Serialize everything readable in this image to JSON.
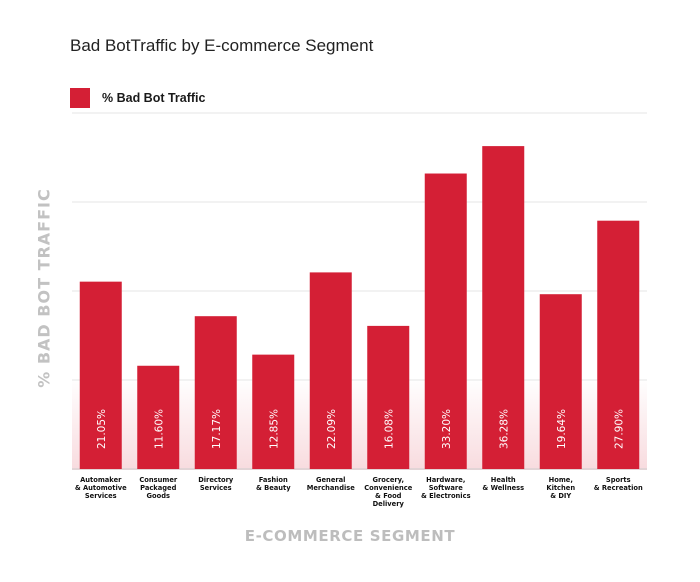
{
  "chart_data": {
    "type": "bar",
    "title": "Bad BotTraffic by E-commerce Segment",
    "xlabel": "E-COMMERCE SEGMENT",
    "ylabel": "% BAD BOT TRAFFIC",
    "ylim": [
      0,
      40
    ],
    "grid": true,
    "legend": "top-left",
    "colors": {
      "bar": "#D41F35",
      "grid": "#e6e6e6",
      "axis_text": "#c2c2c2"
    },
    "categories": [
      [
        "Automaker",
        "& Automotive",
        "Services"
      ],
      [
        "Consumer",
        "Packaged",
        "Goods"
      ],
      [
        "Directory",
        "Services"
      ],
      [
        "Fashion",
        "& Beauty"
      ],
      [
        "General",
        "Merchandise"
      ],
      [
        "Grocery,",
        "Convenience",
        "& Food",
        "Delivery"
      ],
      [
        "Hardware,",
        "Software",
        "& Electronics"
      ],
      [
        "Health",
        "& Wellness"
      ],
      [
        "Home,",
        "Kitchen",
        "& DIY"
      ],
      [
        "Sports",
        "& Recreation"
      ]
    ],
    "series": [
      {
        "name": "% Bad Bot Traffic",
        "values": [
          21.05,
          11.6,
          17.17,
          12.85,
          22.09,
          16.08,
          33.2,
          36.28,
          19.64,
          27.9
        ],
        "labels": [
          "21.05%",
          "11.60%",
          "17.17%",
          "12.85%",
          "22.09%",
          "16.08%",
          "33.20%",
          "36.28%",
          "19.64%",
          "27.90%"
        ]
      }
    ]
  }
}
